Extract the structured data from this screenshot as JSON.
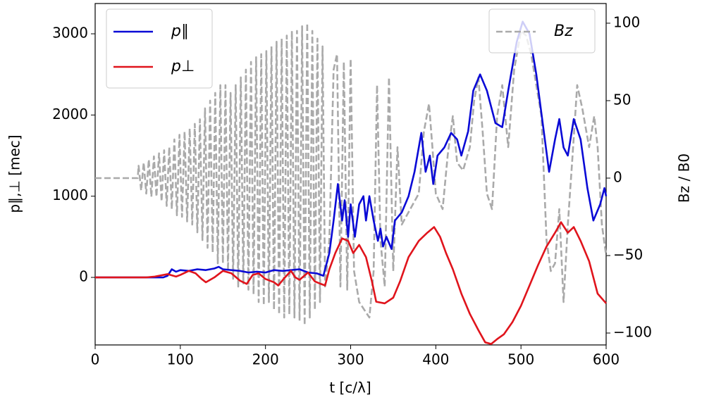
{
  "chart_data": {
    "type": "line",
    "xlabel": "t [c/λ]",
    "ylabel": "p∥,⊥ [mec]",
    "y2label": "Bz / B0",
    "xlim": [
      0,
      600
    ],
    "xticks": [
      0,
      100,
      200,
      300,
      400,
      500,
      600
    ],
    "ylim": [
      -832,
      3373
    ],
    "yticks": [
      0,
      1000,
      2000,
      3000
    ],
    "y2lim": [
      -107.7,
      112.7
    ],
    "y2ticks": [
      {
        "value": -100,
        "label": "−100"
      },
      {
        "value": -50,
        "label": "−50"
      },
      0,
      50,
      100
    ],
    "legend_loc": "upper left",
    "legend2_loc": "upper right",
    "series": [
      {
        "name": "Bz",
        "color": "#aaaaaa",
        "dashed": true,
        "axis": "y2",
        "x": [
          0,
          50,
          51,
          54,
          57,
          60,
          63,
          66,
          69,
          72,
          75,
          78,
          81,
          84,
          87,
          90,
          93,
          96,
          99,
          102,
          105,
          108,
          111,
          114,
          117,
          120,
          123,
          126,
          129,
          132,
          135,
          138,
          141,
          144,
          147,
          150,
          153,
          156,
          159,
          162,
          165,
          168,
          171,
          174,
          177,
          180,
          183,
          186,
          189,
          192,
          195,
          198,
          201,
          204,
          207,
          210,
          213,
          216,
          219,
          222,
          225,
          228,
          231,
          234,
          237,
          240,
          243,
          246,
          249,
          252,
          255,
          258,
          261,
          264,
          267,
          270,
          275,
          280,
          284,
          288,
          292,
          296,
          300,
          304,
          310,
          316,
          322,
          327,
          331,
          335,
          340,
          345,
          350,
          355,
          360,
          370,
          380,
          386,
          392,
          396,
          400,
          408,
          414,
          420,
          425,
          432,
          440,
          445,
          450,
          455,
          460,
          466,
          472,
          478,
          485,
          492,
          500,
          506,
          512,
          518,
          524,
          530,
          535,
          540,
          545,
          550,
          555,
          560,
          566,
          572,
          580,
          586,
          590,
          595,
          600
        ],
        "values": [
          0,
          0,
          8,
          -8,
          10,
          -10,
          12,
          -12,
          14,
          -12,
          16,
          -15,
          18,
          -18,
          20,
          -20,
          25,
          -24,
          28,
          -25,
          30,
          -28,
          32,
          -30,
          35,
          -35,
          38,
          -40,
          45,
          -45,
          50,
          -48,
          55,
          -55,
          60,
          -55,
          60,
          -60,
          55,
          -65,
          60,
          -70,
          65,
          -68,
          70,
          -72,
          75,
          -75,
          78,
          -80,
          80,
          -82,
          82,
          -80,
          85,
          -85,
          88,
          -88,
          90,
          -90,
          92,
          -88,
          95,
          -90,
          95,
          -92,
          98,
          -95,
          100,
          -90,
          95,
          -85,
          90,
          -80,
          85,
          -70,
          -40,
          70,
          80,
          -70,
          75,
          -72,
          77,
          -60,
          -80,
          -85,
          -90,
          -60,
          60,
          -40,
          -70,
          65,
          -60,
          20,
          -30,
          -20,
          -10,
          30,
          48,
          20,
          -10,
          -20,
          15,
          40,
          10,
          5,
          20,
          50,
          65,
          30,
          -10,
          -20,
          40,
          60,
          20,
          70,
          95,
          92,
          80,
          60,
          40,
          -40,
          -60,
          -55,
          -20,
          -80,
          -30,
          10,
          60,
          45,
          20,
          40,
          20,
          -30,
          -50
        ]
      },
      {
        "name": "p∥",
        "color": "#0a0ad6",
        "x": [
          0,
          80,
          85,
          90,
          95,
          100,
          110,
          120,
          130,
          140,
          145,
          150,
          160,
          170,
          180,
          190,
          200,
          210,
          220,
          230,
          240,
          250,
          260,
          268,
          275,
          280,
          285,
          290,
          293,
          297,
          300,
          305,
          310,
          315,
          318,
          322,
          327,
          332,
          335,
          338,
          342,
          348,
          352,
          360,
          368,
          375,
          383,
          388,
          393,
          397,
          402,
          410,
          418,
          425,
          430,
          438,
          444,
          452,
          460,
          470,
          478,
          485,
          495,
          502,
          510,
          518,
          528,
          533,
          540,
          545,
          550,
          555,
          562,
          570,
          578,
          585,
          593,
          598,
          600
        ],
        "values": [
          0,
          0,
          20,
          100,
          70,
          90,
          80,
          100,
          90,
          110,
          130,
          100,
          90,
          80,
          60,
          70,
          60,
          90,
          80,
          90,
          100,
          60,
          50,
          20,
          300,
          700,
          1150,
          700,
          950,
          500,
          900,
          500,
          900,
          1000,
          700,
          1000,
          700,
          450,
          600,
          380,
          500,
          350,
          700,
          800,
          1000,
          1300,
          1780,
          1300,
          1500,
          1150,
          1500,
          1600,
          1780,
          1700,
          1500,
          1800,
          2300,
          2500,
          2300,
          1900,
          1850,
          2300,
          2900,
          3150,
          3000,
          2500,
          1700,
          1300,
          1700,
          1950,
          1600,
          1500,
          1950,
          1700,
          1100,
          700,
          900,
          1100,
          1000
        ]
      },
      {
        "name": "p⊥",
        "color": "#e0141c",
        "x": [
          0,
          60,
          70,
          85,
          95,
          100,
          110,
          118,
          125,
          130,
          140,
          150,
          160,
          170,
          178,
          185,
          192,
          200,
          210,
          215,
          222,
          230,
          235,
          240,
          250,
          258,
          265,
          270,
          275,
          282,
          290,
          297,
          303,
          310,
          318,
          325,
          330,
          340,
          350,
          358,
          368,
          380,
          390,
          398,
          405,
          412,
          420,
          430,
          440,
          450,
          458,
          465,
          472,
          480,
          490,
          500,
          510,
          520,
          530,
          540,
          547,
          555,
          562,
          570,
          580,
          590,
          600
        ],
        "values": [
          0,
          0,
          10,
          40,
          10,
          30,
          80,
          50,
          -20,
          -60,
          0,
          80,
          50,
          -40,
          -80,
          30,
          50,
          -20,
          -60,
          -100,
          -10,
          80,
          0,
          -30,
          60,
          -50,
          -80,
          -100,
          100,
          300,
          480,
          450,
          300,
          400,
          250,
          -50,
          -300,
          -320,
          -250,
          -50,
          250,
          450,
          550,
          620,
          500,
          300,
          100,
          -200,
          -450,
          -650,
          -800,
          -820,
          -760,
          -700,
          -550,
          -350,
          -100,
          150,
          380,
          550,
          680,
          550,
          620,
          450,
          200,
          -200,
          -320
        ]
      }
    ]
  }
}
